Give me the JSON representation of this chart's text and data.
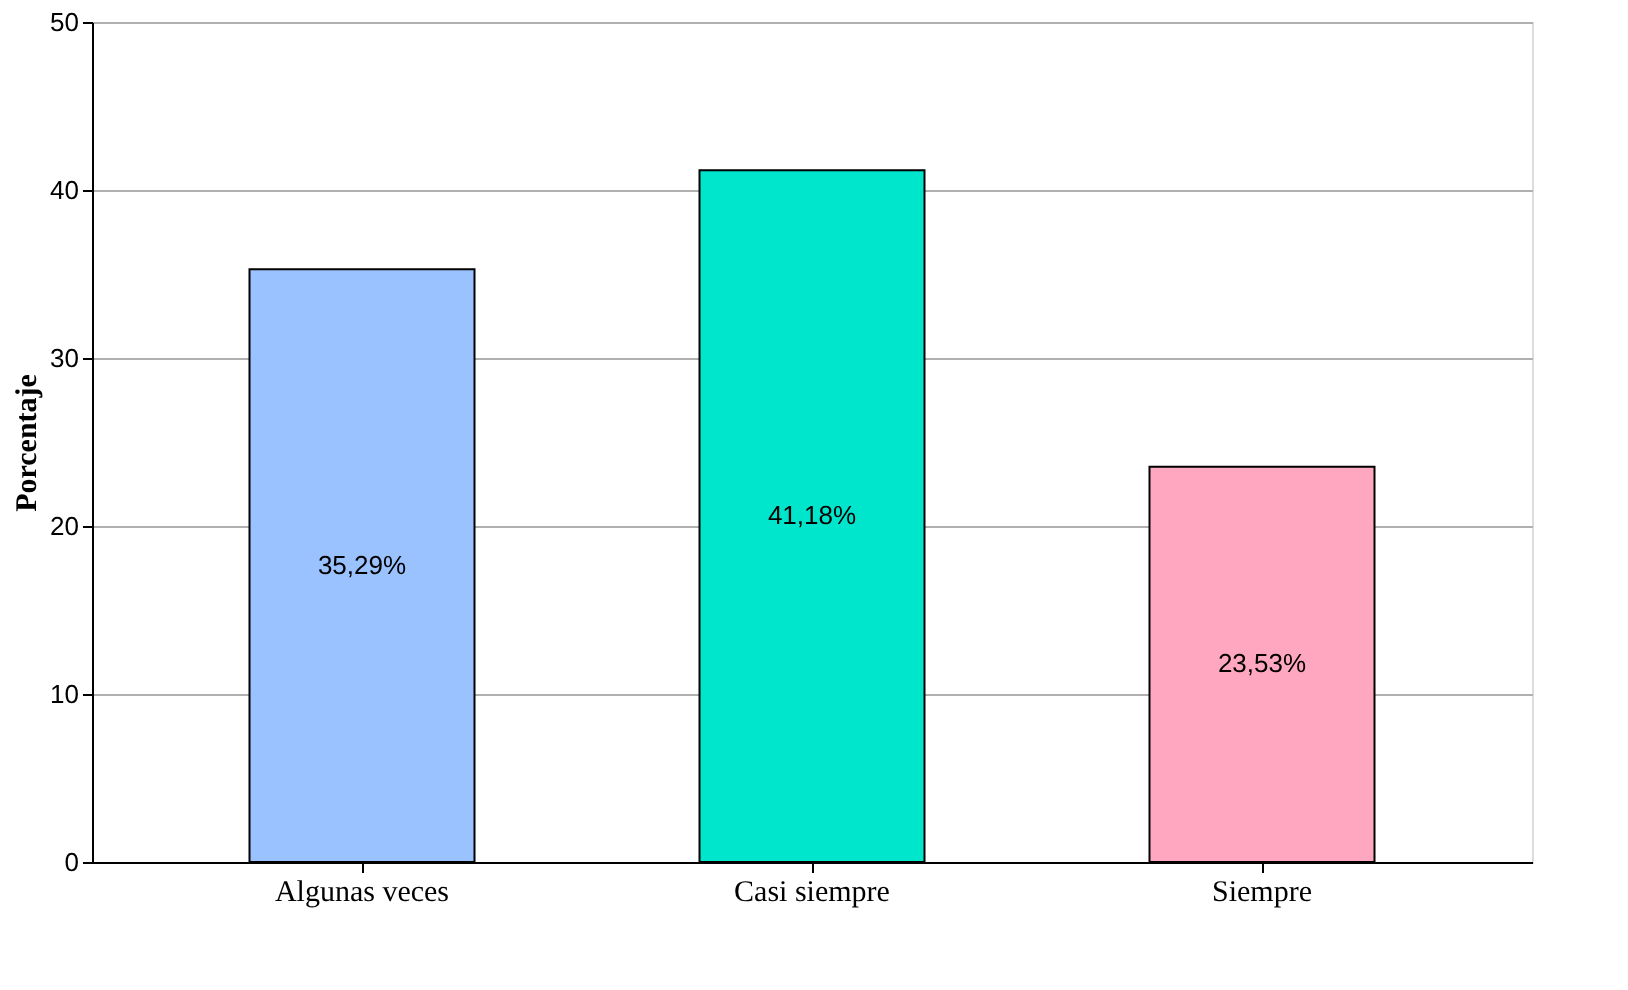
{
  "chart_data": {
    "type": "bar",
    "ylabel": "Porcentaje",
    "categories": [
      "Algunas veces",
      "Casi siempre",
      "Siempre"
    ],
    "values": [
      35.29,
      41.18,
      23.53
    ],
    "colors": [
      "#99c2ff",
      "#00e6cc",
      "#ffa6c0"
    ],
    "value_labels": [
      "35,29%",
      "41,18%",
      "23,53%"
    ],
    "ylim": [
      0,
      50
    ],
    "yticks": [
      0,
      10,
      20,
      30,
      40,
      50
    ],
    "grid": "y"
  }
}
